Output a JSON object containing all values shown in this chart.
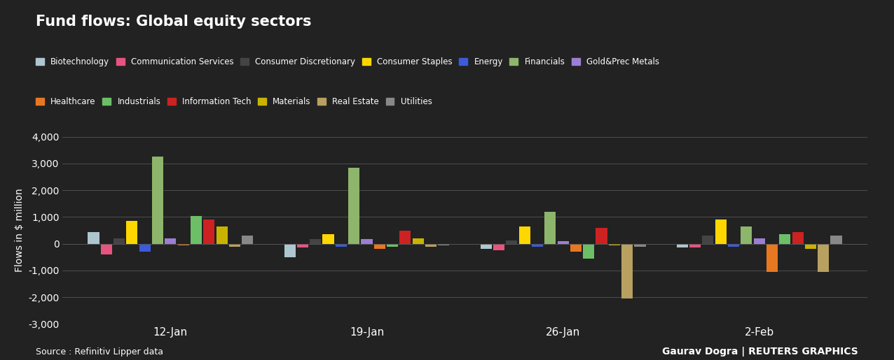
{
  "title": "Fund flows: Global equity sectors",
  "ylabel": "Flows in $ million",
  "source_text": "Source : Refinitiv Lipper data",
  "credit_text": "Gaurav Dogra | REUTERS GRAPHICS",
  "background_color": "#222222",
  "text_color": "#ffffff",
  "grid_color": "#555555",
  "dates": [
    "12-Jan",
    "19-Jan",
    "26-Jan",
    "2-Feb"
  ],
  "sectors": [
    "Biotechnology",
    "Communication Services",
    "Consumer Discretionary",
    "Consumer Staples",
    "Energy",
    "Financials",
    "Gold&Prec Metals",
    "Healthcare",
    "Industrials",
    "Information Tech",
    "Materials",
    "Real Estate",
    "Utilities"
  ],
  "colors": [
    "#aec6cf",
    "#e75480",
    "#444444",
    "#ffd700",
    "#3b5bdb",
    "#8db56b",
    "#9b7fd4",
    "#e87722",
    "#6dbf67",
    "#cc2222",
    "#c8b400",
    "#b8a060",
    "#888888"
  ],
  "values": {
    "12-Jan": [
      450,
      -400,
      200,
      850,
      -300,
      3250,
      200,
      -50,
      1050,
      900,
      650,
      -100,
      300
    ],
    "19-Jan": [
      -500,
      -150,
      180,
      350,
      -100,
      2850,
      170,
      -200,
      -100,
      500,
      200,
      -100,
      -50
    ],
    "26-Jan": [
      -200,
      -250,
      130,
      650,
      -100,
      1200,
      100,
      -300,
      -550,
      600,
      -50,
      -2050,
      -100
    ],
    "2-Feb": [
      -150,
      -150,
      300,
      900,
      -100,
      650,
      200,
      -1050,
      350,
      450,
      -200,
      -1050,
      300
    ]
  },
  "ylim": [
    -3000,
    4000
  ],
  "yticks": [
    -3000,
    -2000,
    -1000,
    0,
    1000,
    2000,
    3000,
    4000
  ],
  "figsize": [
    12.76,
    5.15
  ],
  "dpi": 100
}
